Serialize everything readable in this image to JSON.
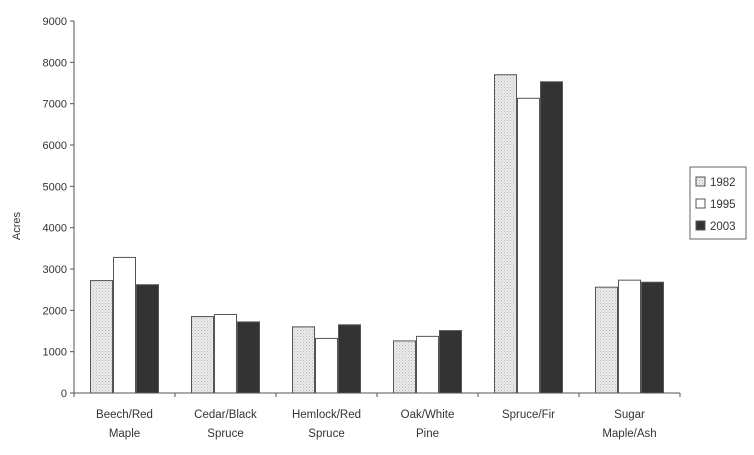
{
  "chart_data": {
    "type": "bar",
    "title": "",
    "xlabel": "",
    "ylabel": "Acres",
    "ylim": [
      0,
      9000
    ],
    "ytick_step": 1000,
    "grid": false,
    "legend_position": "right",
    "categories": [
      [
        "Beech/Red",
        "Maple"
      ],
      [
        "Cedar/Black",
        "Spruce"
      ],
      [
        "Hemlock/Red",
        "Spruce"
      ],
      [
        "Oak/White",
        "Pine"
      ],
      [
        "Spruce/Fir"
      ],
      [
        "Sugar",
        "Maple/Ash"
      ]
    ],
    "series": [
      {
        "name": "1982",
        "fill": "#e6e6e6",
        "pattern": "dotted",
        "values": [
          2720,
          1850,
          1600,
          1260,
          7700,
          2560
        ]
      },
      {
        "name": "1995",
        "fill": "#ffffff",
        "pattern": "none",
        "values": [
          3280,
          1900,
          1320,
          1370,
          7130,
          2730
        ]
      },
      {
        "name": "2003",
        "fill": "#333333",
        "pattern": "none",
        "values": [
          2620,
          1720,
          1650,
          1510,
          7530,
          2680
        ]
      }
    ]
  }
}
